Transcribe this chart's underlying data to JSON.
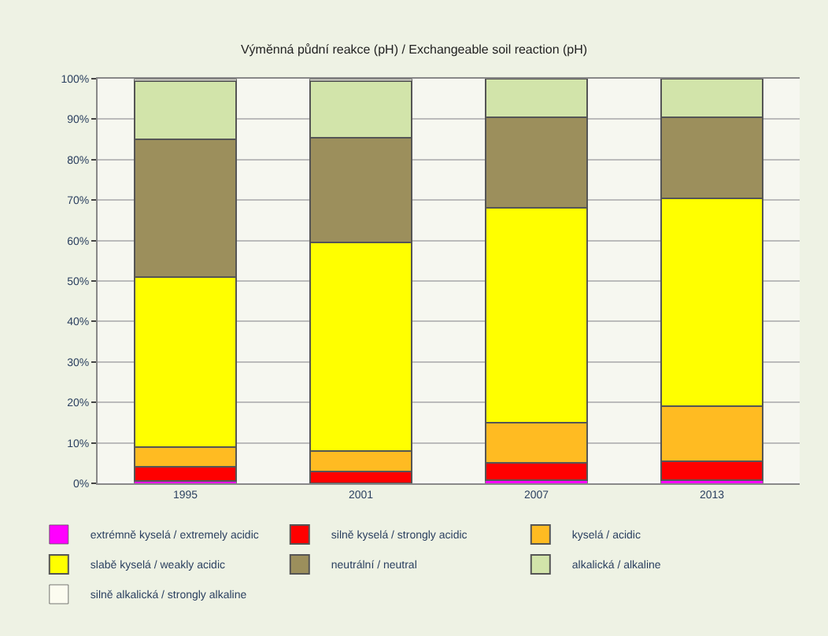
{
  "chart_data": {
    "type": "bar",
    "stacked": true,
    "title": "Výměnná půdní reakce (pH) / Exchangeable soil reaction (pH)",
    "categories": [
      "1995",
      "2001",
      "2007",
      "2013"
    ],
    "series": [
      {
        "name": "extrémně kyselá / extremely acidic",
        "color": "#ff00ff",
        "values": [
          0.5,
          0,
          0.7,
          0.7
        ]
      },
      {
        "name": "silně kyselá / strongly acidic",
        "color": "#ff0000",
        "values": [
          3.5,
          3,
          4.3,
          4.8
        ]
      },
      {
        "name": "kyselá / acidic",
        "color": "#ffbb22",
        "values": [
          5,
          5,
          10,
          13.5
        ]
      },
      {
        "name": "slabě kyselá / weakly acidic",
        "color": "#ffff00",
        "values": [
          42,
          51.5,
          53,
          51.5
        ]
      },
      {
        "name": "neutrální / neutral",
        "color": "#9c8f5c",
        "values": [
          34,
          26,
          22.5,
          20
        ]
      },
      {
        "name": "alkalická / alkaline",
        "color": "#d2e4aa",
        "values": [
          14.5,
          14,
          9.5,
          9.5
        ]
      },
      {
        "name": "silně alkalická / strongly alkaline",
        "color": "#fcfcf0",
        "values": [
          0.5,
          0.5,
          0,
          0
        ]
      }
    ],
    "ylim": [
      0,
      100
    ],
    "yticks": [
      {
        "value": 0,
        "label": "0%"
      },
      {
        "value": 10,
        "label": "10%"
      },
      {
        "value": 20,
        "label": "20%"
      },
      {
        "value": 30,
        "label": "30%"
      },
      {
        "value": 40,
        "label": "40%"
      },
      {
        "value": 50,
        "label": "50%"
      },
      {
        "value": 60,
        "label": "60%"
      },
      {
        "value": 70,
        "label": "70%"
      },
      {
        "value": 80,
        "label": "80%"
      },
      {
        "value": 90,
        "label": "90%"
      },
      {
        "value": 100,
        "label": "100%"
      }
    ],
    "grid": "y",
    "legend": "bottom"
  }
}
